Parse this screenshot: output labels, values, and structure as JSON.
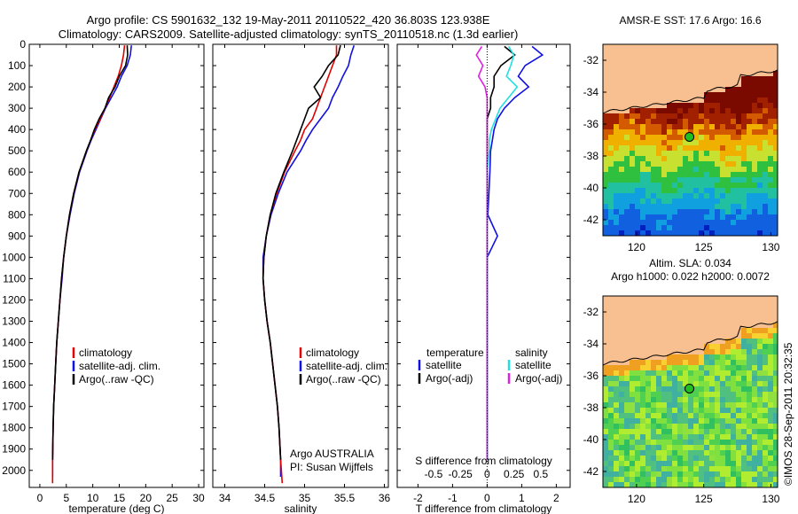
{
  "header": {
    "line1": "Argo profile: CS 5901632_132 19-May-2011 20110522_420 36.803S 123.938E",
    "line2": "Climatology: CARS2009. Satellite-adjusted climatology: synTS_20110518.nc (1.3d earlier)"
  },
  "colors": {
    "climatology": "#e00000",
    "satellite": "#1010e0",
    "argo": "#000000",
    "sat_sal": "#20e0e0",
    "argo_sal": "#e020e0"
  },
  "chart_data": [
    {
      "id": "temperature",
      "type": "line",
      "xlabel": "temperature (deg C)",
      "ylabel": "depth",
      "xlim": [
        -2,
        31
      ],
      "ylim": [
        2080,
        0
      ],
      "xticks": [
        0,
        5,
        10,
        15,
        20,
        25,
        30
      ],
      "yticks": [
        0,
        100,
        200,
        300,
        400,
        500,
        600,
        700,
        800,
        900,
        1000,
        1100,
        1200,
        1300,
        1400,
        1500,
        1600,
        1700,
        1800,
        1900,
        2000
      ],
      "legend": {
        "climatology": "climatology",
        "satellite": "satellite-adj. clim.",
        "argo": "Argo(..raw -QC)"
      },
      "series": [
        {
          "name": "climatology",
          "key": "climatology",
          "x": [
            16.0,
            15.8,
            15.4,
            14.8,
            14.0,
            13.2,
            12.3,
            11.4,
            10.4,
            9.6,
            8.8,
            7.4,
            6.4,
            5.6,
            5.0,
            4.5,
            4.1,
            3.8,
            3.5,
            3.2,
            3.0,
            2.8,
            2.6,
            2.5,
            2.4,
            2.4
          ],
          "y": [
            5,
            50,
            100,
            150,
            200,
            250,
            300,
            350,
            400,
            450,
            500,
            600,
            700,
            800,
            900,
            1000,
            1100,
            1200,
            1300,
            1400,
            1500,
            1600,
            1700,
            1800,
            1950,
            2060
          ]
        },
        {
          "name": "satellite-adj. clim.",
          "key": "satellite",
          "x": [
            17.3,
            17.1,
            16.5,
            15.4,
            14.6,
            13.5,
            12.4,
            11.5,
            10.6,
            9.7,
            8.9,
            7.5,
            6.5,
            5.7,
            5.0,
            4.5,
            4.2,
            3.8,
            3.5,
            3.2,
            3.0,
            2.8,
            2.6,
            2.5,
            2.4,
            2.4
          ],
          "y": [
            5,
            50,
            100,
            150,
            200,
            250,
            300,
            350,
            400,
            450,
            500,
            600,
            700,
            800,
            900,
            1000,
            1100,
            1200,
            1300,
            1400,
            1500,
            1600,
            1700,
            1800,
            1950,
            2030
          ]
        },
        {
          "name": "Argo(..raw -QC)",
          "key": "argo",
          "x": [
            16.5,
            16.6,
            16.2,
            15.0,
            14.2,
            13.0,
            12.3,
            11.2,
            10.3,
            9.6,
            8.8,
            7.4,
            6.4,
            5.6,
            5.0,
            4.5,
            4.1,
            3.8,
            3.5,
            3.2,
            3.0,
            2.8,
            2.6,
            2.5,
            2.4
          ],
          "y": [
            5,
            50,
            100,
            150,
            200,
            250,
            300,
            350,
            400,
            450,
            500,
            600,
            700,
            800,
            900,
            1000,
            1100,
            1200,
            1300,
            1400,
            1500,
            1600,
            1700,
            1800,
            1950
          ]
        }
      ]
    },
    {
      "id": "salinity",
      "type": "line",
      "xlabel": "salinity",
      "ylabel": "depth",
      "xlim": [
        33.85,
        36.05
      ],
      "ylim": [
        2080,
        0
      ],
      "xticks": [
        34,
        34.5,
        35,
        35.5,
        36
      ],
      "legend": {
        "climatology": "climatology",
        "satellite": "satellite-adj. clim.",
        "argo": "Argo(..raw -QC)"
      },
      "note1": "Argo AUSTRALIA",
      "note2": "PI: Susan Wijffels",
      "series": [
        {
          "name": "climatology",
          "key": "climatology",
          "x": [
            35.4,
            35.4,
            35.35,
            35.3,
            35.25,
            35.2,
            35.15,
            35.1,
            35.0,
            34.95,
            34.88,
            34.75,
            34.65,
            34.57,
            34.52,
            34.49,
            34.48,
            34.5,
            34.53,
            34.57,
            34.6,
            34.63,
            34.66,
            34.68,
            34.7,
            34.72
          ],
          "y": [
            5,
            50,
            100,
            150,
            200,
            250,
            300,
            350,
            400,
            450,
            500,
            600,
            700,
            800,
            900,
            1000,
            1100,
            1200,
            1300,
            1400,
            1500,
            1600,
            1700,
            1800,
            1950,
            2060
          ]
        },
        {
          "name": "satellite-adj. clim.",
          "key": "satellite",
          "x": [
            35.62,
            35.58,
            35.55,
            35.48,
            35.42,
            35.35,
            35.3,
            35.2,
            35.1,
            35.02,
            34.95,
            34.78,
            34.67,
            34.58,
            34.52,
            34.48,
            34.48,
            34.5,
            34.53,
            34.57,
            34.6,
            34.63,
            34.66,
            34.68,
            34.7,
            34.7
          ],
          "y": [
            5,
            50,
            100,
            150,
            200,
            250,
            300,
            350,
            400,
            450,
            500,
            600,
            700,
            800,
            900,
            1000,
            1100,
            1200,
            1300,
            1400,
            1500,
            1600,
            1700,
            1800,
            1950,
            2030
          ]
        },
        {
          "name": "Argo(..raw -QC)",
          "key": "argo",
          "x": [
            35.45,
            35.42,
            35.3,
            35.22,
            35.12,
            35.2,
            35.05,
            35.0,
            34.95,
            34.9,
            34.85,
            34.74,
            34.64,
            34.57,
            34.52,
            34.49,
            34.48,
            34.5,
            34.53,
            34.57,
            34.6,
            34.63,
            34.66,
            34.68,
            34.7
          ],
          "y": [
            5,
            50,
            100,
            150,
            200,
            250,
            300,
            350,
            400,
            450,
            500,
            600,
            700,
            800,
            900,
            1000,
            1100,
            1200,
            1300,
            1400,
            1500,
            1600,
            1700,
            1800,
            1950
          ]
        }
      ]
    },
    {
      "id": "difference",
      "type": "line",
      "xlabel": "T difference from climatology",
      "toplabel": "S difference from climatology",
      "xlim": [
        -2.6,
        2.4
      ],
      "ylim": [
        2080,
        0
      ],
      "xticks": [
        -2,
        -1,
        0,
        1,
        2
      ],
      "sticks": [
        {
          "v": -0.5,
          "label": "-0.5"
        },
        {
          "v": -0.25,
          "label": "-0.25"
        },
        {
          "v": 0,
          "label": "0"
        },
        {
          "v": 0.25,
          "label": "0.25"
        },
        {
          "v": 0.5,
          "label": "0.5"
        }
      ],
      "legend": {
        "temp_title": "temperature",
        "temp_sat": "satellite",
        "temp_argo": "Argo(-adj)",
        "sal_title": "salinity",
        "sal_sat": "satellite",
        "sal_argo": "Argo(-adj)"
      },
      "series": [
        {
          "name": "T satellite",
          "key": "satellite",
          "x": [
            1.3,
            1.6,
            1.1,
            0.9,
            1.2,
            0.8,
            0.5,
            0.3,
            0.2,
            0.15,
            0.1,
            0.08,
            0.05,
            0.02,
            0.3,
            0.0,
            0.0,
            0.0,
            0.0,
            0.0,
            0.0,
            0.0,
            0.0,
            0.0,
            0.0
          ],
          "y": [
            10,
            50,
            100,
            150,
            200,
            250,
            300,
            350,
            400,
            450,
            500,
            600,
            700,
            800,
            900,
            1000,
            1100,
            1200,
            1300,
            1400,
            1500,
            1600,
            1700,
            1800,
            1950
          ]
        },
        {
          "name": "T Argo(-adj)",
          "key": "argo",
          "x": [
            0.5,
            0.8,
            0.4,
            0.2,
            0.2,
            0.1,
            0.1,
            0.0,
            0.0,
            0.0,
            0.0,
            0.0,
            0.0,
            0.0,
            0.0,
            0.0,
            0.0,
            0.0,
            0.0,
            0.0,
            0.0,
            0.0,
            0.0,
            0.0,
            0.0
          ],
          "y": [
            10,
            50,
            100,
            150,
            200,
            250,
            300,
            350,
            400,
            450,
            500,
            600,
            700,
            800,
            900,
            1000,
            1100,
            1200,
            1300,
            1400,
            1500,
            1600,
            1700,
            1800,
            1950
          ]
        },
        {
          "name": "S satellite",
          "key": "sat_sal",
          "x": [
            0.2,
            0.25,
            0.22,
            0.18,
            0.28,
            0.2,
            0.12,
            0.08,
            0.04,
            0.02,
            0.02,
            0.0,
            0.0,
            0.0,
            0.0,
            0.0,
            0.0,
            0.0,
            0.0,
            0.0,
            0.0,
            0.0,
            0.0,
            0.0,
            0.0
          ],
          "y": [
            10,
            50,
            100,
            150,
            200,
            250,
            300,
            350,
            400,
            450,
            500,
            600,
            700,
            800,
            900,
            1000,
            1100,
            1200,
            1300,
            1400,
            1500,
            1600,
            1700,
            1800,
            1950
          ]
        },
        {
          "name": "S Argo(-adj)",
          "key": "argo_sal",
          "x": [
            -0.05,
            -0.1,
            -0.04,
            -0.08,
            -0.02,
            0.0,
            0.0,
            0.0,
            0.0,
            0.0,
            0.0,
            0.0,
            0.0,
            0.0,
            0.0,
            0.0,
            0.0,
            0.0,
            0.0,
            0.0,
            0.0,
            0.0,
            0.0,
            0.0,
            0.0
          ],
          "y": [
            10,
            50,
            100,
            150,
            200,
            250,
            300,
            350,
            400,
            450,
            500,
            600,
            700,
            800,
            900,
            1000,
            1100,
            1200,
            1300,
            1400,
            1500,
            1600,
            1700,
            1800,
            1950
          ]
        }
      ]
    },
    {
      "id": "sst_map",
      "type": "heatmap",
      "title": "AMSR-E SST: 17.6 Argo: 16.6",
      "xlim": [
        117.5,
        130.5
      ],
      "ylim": [
        -43,
        -31
      ],
      "xticks": [
        120,
        125,
        130
      ],
      "yticks": [
        -32,
        -34,
        -36,
        -38,
        -40,
        -42
      ],
      "argo_position": {
        "lon": 123.938,
        "lat": -36.803
      }
    },
    {
      "id": "sla_map",
      "type": "heatmap",
      "title1": "Altim. SLA: 0.034",
      "title2": "Argo h1000: 0.022 h2000: 0.0072",
      "xlim": [
        117.5,
        130.5
      ],
      "ylim": [
        -43,
        -31
      ],
      "xticks": [
        120,
        125,
        130
      ],
      "yticks": [
        -32,
        -34,
        -36,
        -38,
        -40,
        -42
      ],
      "argo_position": {
        "lon": 123.938,
        "lat": -36.803
      }
    }
  ],
  "footer": {
    "stamp": "©IMOS 28-Sep-2011 20:32:35"
  }
}
